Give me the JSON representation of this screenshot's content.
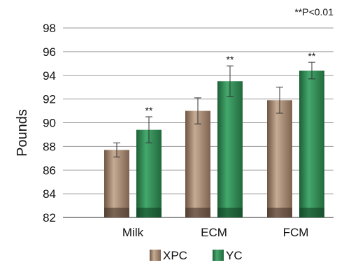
{
  "chart_data": {
    "type": "bar",
    "title": "",
    "ylabel": "Pounds",
    "xlabel": "",
    "annotation": "**P<0.01",
    "categories": [
      "Milk",
      "ECM",
      "FCM"
    ],
    "ylim": [
      82,
      98
    ],
    "yticks": [
      82,
      84,
      86,
      88,
      90,
      92,
      94,
      96,
      98
    ],
    "legend_position": "bottom",
    "series": [
      {
        "name": "XPC",
        "color": "#a88a72",
        "values": [
          87.7,
          91.0,
          91.9
        ],
        "errors": [
          0.6,
          1.1,
          1.1
        ]
      },
      {
        "name": "YC",
        "color": "#2f8a55",
        "values": [
          89.4,
          93.5,
          94.4
        ],
        "errors": [
          1.1,
          1.3,
          0.7
        ],
        "significance": [
          "**",
          "**",
          "**"
        ]
      }
    ]
  }
}
